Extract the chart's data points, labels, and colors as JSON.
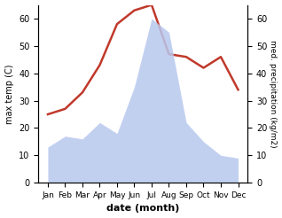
{
  "months": [
    "Jan",
    "Feb",
    "Mar",
    "Apr",
    "May",
    "Jun",
    "Jul",
    "Aug",
    "Sep",
    "Oct",
    "Nov",
    "Dec"
  ],
  "temperature": [
    25,
    27,
    33,
    43,
    58,
    63,
    65,
    47,
    46,
    42,
    46,
    34
  ],
  "precipitation": [
    13,
    17,
    16,
    22,
    18,
    35,
    60,
    55,
    22,
    15,
    10,
    9
  ],
  "temp_color": "#c0392b",
  "precip_color": "#b8c8ee",
  "xlabel": "date (month)",
  "ylabel_left": "max temp (C)",
  "ylabel_right": "med. precipitation (kg/m2)",
  "ylim": [
    0,
    65
  ],
  "yticks": [
    0,
    10,
    20,
    30,
    40,
    50,
    60
  ],
  "background_color": "#ffffff"
}
